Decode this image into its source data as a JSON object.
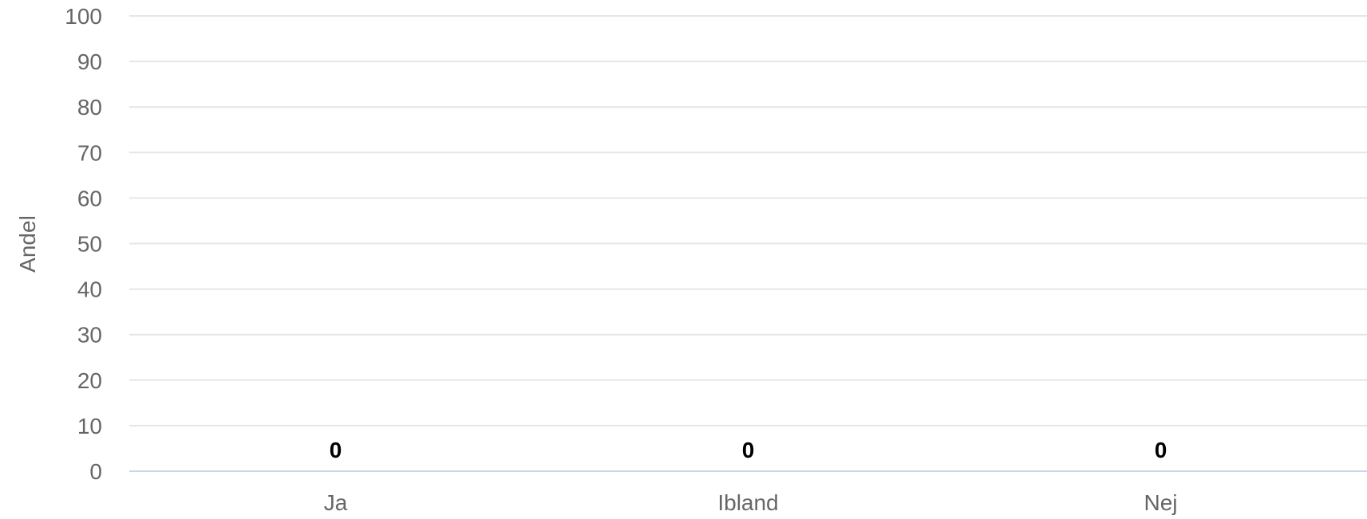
{
  "chart_data": {
    "type": "bar",
    "categories": [
      "Ja",
      "Ibland",
      "Nej"
    ],
    "values": [
      0,
      0,
      0
    ],
    "data_labels": [
      "0",
      "0",
      "0"
    ],
    "ylabel": "Andel",
    "xlabel": "",
    "ylim": [
      0,
      100
    ],
    "yticks": [
      0,
      10,
      20,
      30,
      40,
      50,
      60,
      70,
      80,
      90,
      100
    ],
    "grid": true,
    "legend": "none",
    "colors": {
      "gridline": "#e6e6e6",
      "baseline": "#ccd6eb",
      "tick_text": "#666666",
      "data_label": "#000000"
    }
  }
}
